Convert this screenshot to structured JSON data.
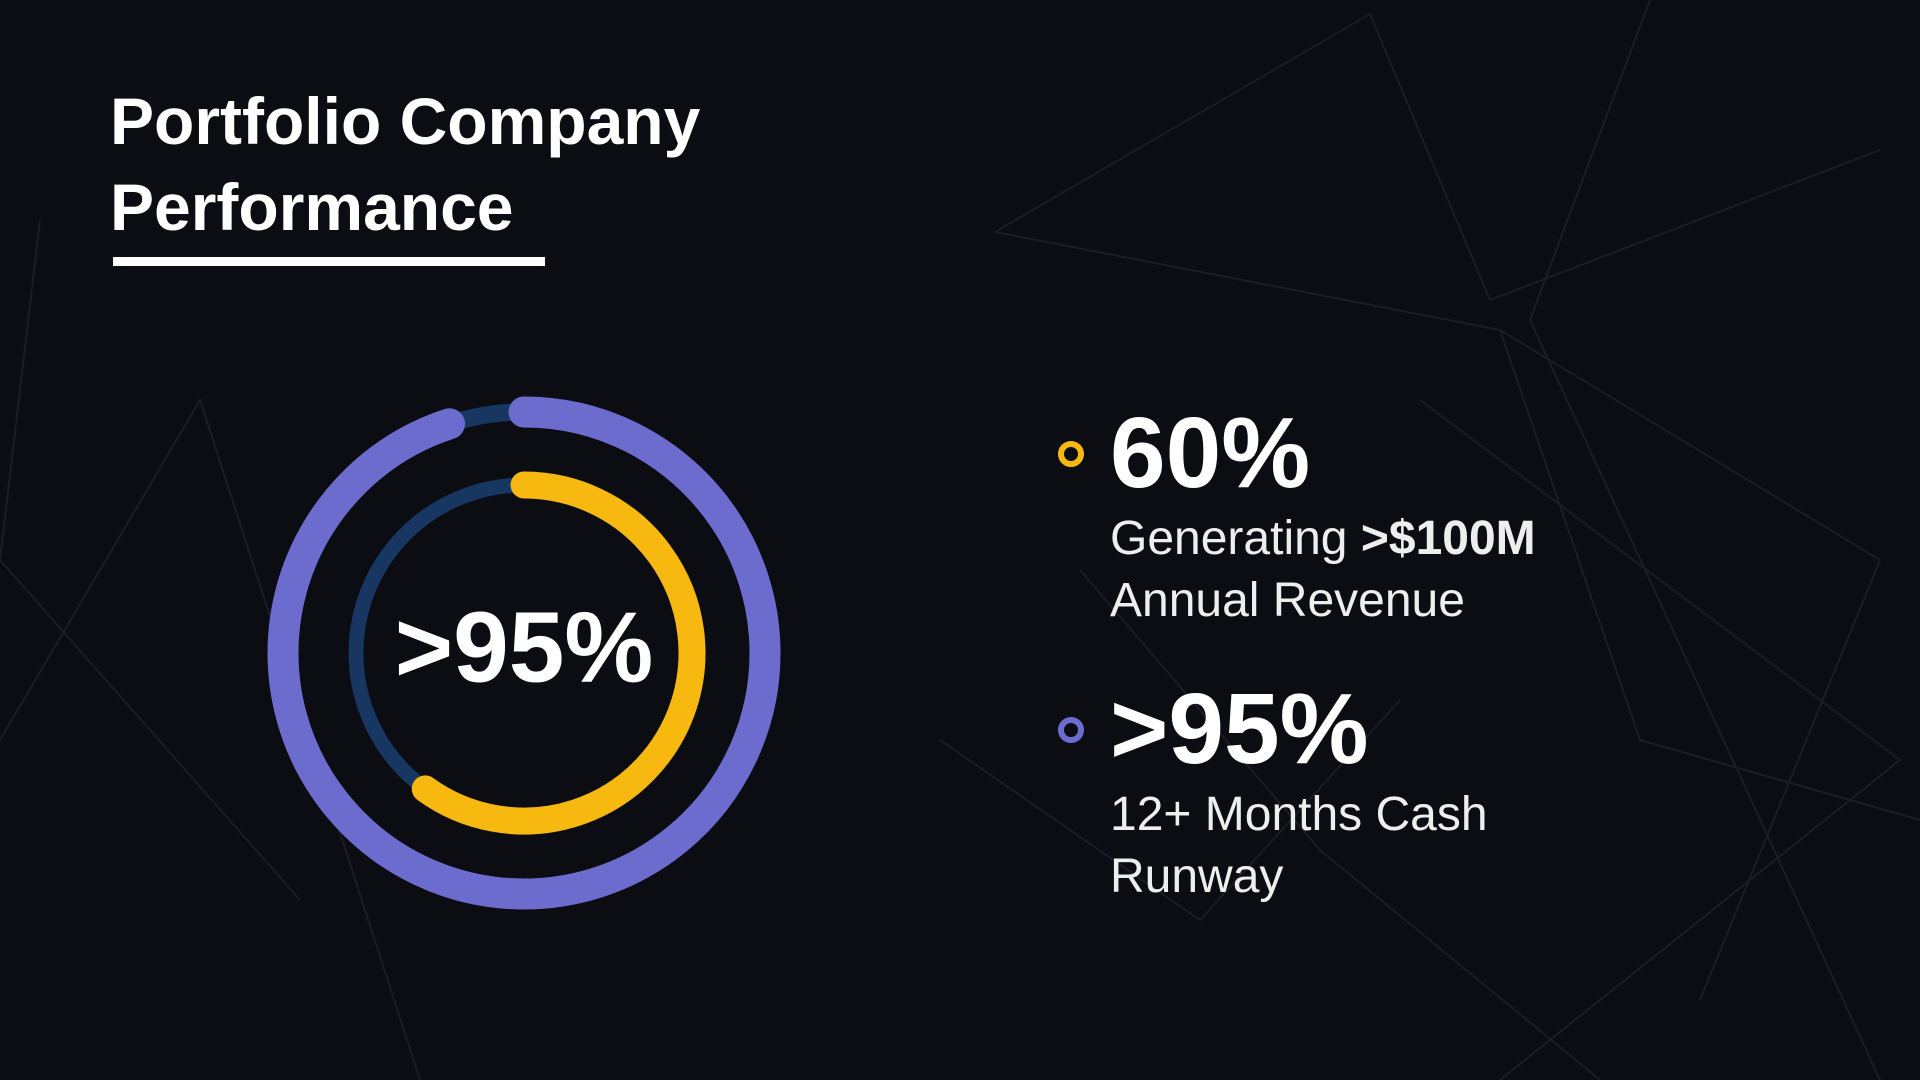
{
  "chart_data": {
    "type": "radial",
    "title": "Portfolio Company Performance",
    "value_range": [
      0,
      100
    ],
    "track_color": "#173762",
    "series": [
      {
        "color": "#f7b90f",
        "values": [
          60
        ],
        "value_labels": [
          "60%"
        ],
        "name_parts": [
          {
            "text": "Generating"
          },
          {
            "text": ">$100M",
            "bold": true
          },
          {
            "text": "Annual Revenue"
          }
        ]
      },
      {
        "color": "#6c6ccf",
        "values": [
          95
        ],
        "value_labels": [
          ">95%"
        ],
        "name_parts": [
          {
            "text": "12+ Months Cash Runway"
          }
        ]
      }
    ]
  }
}
